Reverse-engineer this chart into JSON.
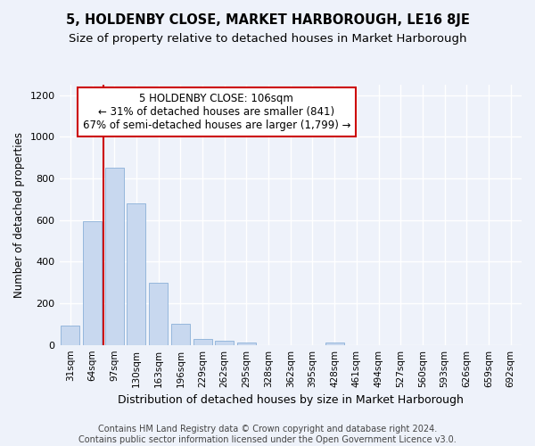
{
  "title": "5, HOLDENBY CLOSE, MARKET HARBOROUGH, LE16 8JE",
  "subtitle": "Size of property relative to detached houses in Market Harborough",
  "xlabel": "Distribution of detached houses by size in Market Harborough",
  "ylabel": "Number of detached properties",
  "footer_line1": "Contains HM Land Registry data © Crown copyright and database right 2024.",
  "footer_line2": "Contains public sector information licensed under the Open Government Licence v3.0.",
  "categories": [
    "31sqm",
    "64sqm",
    "97sqm",
    "130sqm",
    "163sqm",
    "196sqm",
    "229sqm",
    "262sqm",
    "295sqm",
    "328sqm",
    "362sqm",
    "395sqm",
    "428sqm",
    "461sqm",
    "494sqm",
    "527sqm",
    "560sqm",
    "593sqm",
    "626sqm",
    "659sqm",
    "692sqm"
  ],
  "values": [
    95,
    595,
    850,
    680,
    300,
    100,
    30,
    22,
    10,
    0,
    0,
    0,
    12,
    0,
    0,
    0,
    0,
    0,
    0,
    0,
    0
  ],
  "bar_color": "#c8d8ef",
  "bar_edge_color": "#8ab0d8",
  "annotation_line1": "5 HOLDENBY CLOSE: 106sqm",
  "annotation_line2": "← 31% of detached houses are smaller (841)",
  "annotation_line3": "67% of semi-detached houses are larger (1,799) →",
  "vline_x": 2.0,
  "vline_color": "#cc0000",
  "ylim": [
    0,
    1250
  ],
  "yticks": [
    0,
    200,
    400,
    600,
    800,
    1000,
    1200
  ],
  "bg_color": "#eef2fa",
  "grid_color": "#ffffff",
  "title_fontsize": 10.5,
  "subtitle_fontsize": 9.5,
  "xlabel_fontsize": 9,
  "ylabel_fontsize": 8.5,
  "tick_fontsize": 7.5,
  "annotation_fontsize": 8.5,
  "footer_fontsize": 7
}
